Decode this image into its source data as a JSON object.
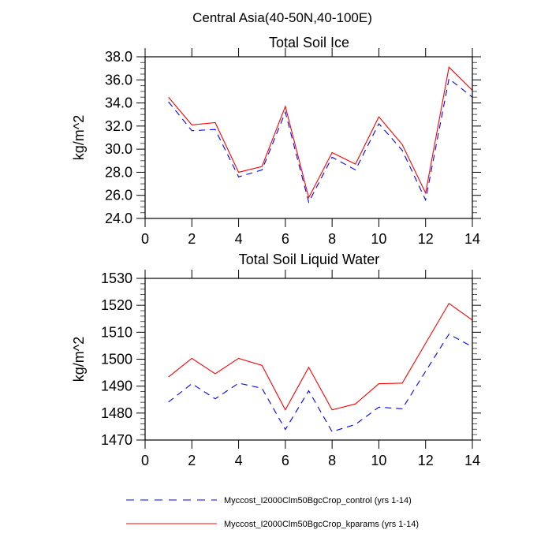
{
  "title": "Central Asia(40-50N,40-100E)",
  "colors": {
    "control": "#0000ff",
    "kparams": "#ff0000",
    "axis": "#000000"
  },
  "legend": [
    {
      "label": "Myccost_I2000Clm50BgcCrop_control (yrs 1-14)",
      "style": "dashed",
      "color": "#0000ff"
    },
    {
      "label": "Myccost_I2000Clm50BgcCrop_kparams (yrs 1-14)",
      "style": "solid",
      "color": "#ff0000"
    }
  ],
  "chart_data": [
    {
      "type": "line",
      "title": "Total Soil Ice",
      "xlabel": "",
      "ylabel": "kg/m^2",
      "xlim": [
        0,
        14
      ],
      "ylim": [
        24,
        38
      ],
      "xticks": [
        "0",
        "2",
        "4",
        "6",
        "8",
        "10",
        "12",
        "14"
      ],
      "yticks": [
        "24.0",
        "26.0",
        "28.0",
        "30.0",
        "32.0",
        "34.0",
        "36.0",
        "38.0"
      ],
      "x": [
        1,
        2,
        3,
        4,
        5,
        6,
        7,
        8,
        9,
        10,
        11,
        12,
        13,
        14
      ],
      "series": [
        {
          "name": "Myccost_I2000Clm50BgcCrop_control (yrs 1-14)",
          "values": [
            34.1,
            31.6,
            31.7,
            27.6,
            28.2,
            33.2,
            25.4,
            29.3,
            28.2,
            32.2,
            29.9,
            25.6,
            36.1,
            34.5
          ]
        },
        {
          "name": "Myccost_I2000Clm50BgcCrop_kparams (yrs 1-14)",
          "values": [
            34.5,
            32.1,
            32.3,
            28.0,
            28.5,
            33.7,
            25.8,
            29.7,
            28.7,
            32.8,
            30.4,
            26.2,
            37.1,
            35.1
          ]
        }
      ]
    },
    {
      "type": "line",
      "title": "Total Soil Liquid Water",
      "xlabel": "",
      "ylabel": "kg/m^2",
      "xlim": [
        0,
        14
      ],
      "ylim": [
        1470,
        1530
      ],
      "xticks": [
        "0",
        "2",
        "4",
        "6",
        "8",
        "10",
        "12",
        "14"
      ],
      "yticks": [
        "1470",
        "1480",
        "1490",
        "1500",
        "1510",
        "1520",
        "1530"
      ],
      "x": [
        1,
        2,
        3,
        4,
        5,
        6,
        7,
        8,
        9,
        10,
        11,
        12,
        13,
        14
      ],
      "series": [
        {
          "name": "Myccost_I2000Clm50BgcCrop_control (yrs 1-14)",
          "values": [
            1484.1,
            1490.9,
            1485.3,
            1491.1,
            1489.2,
            1473.9,
            1488.3,
            1473.1,
            1475.8,
            1482.2,
            1481.6,
            1495.5,
            1509.3,
            1504.6
          ]
        },
        {
          "name": "Myccost_I2000Clm50BgcCrop_kparams (yrs 1-14)",
          "values": [
            1493.4,
            1500.3,
            1494.6,
            1500.3,
            1497.7,
            1481.2,
            1497.0,
            1481.2,
            1483.4,
            1490.9,
            1491.1,
            1505.9,
            1520.7,
            1514.5
          ]
        }
      ]
    }
  ]
}
